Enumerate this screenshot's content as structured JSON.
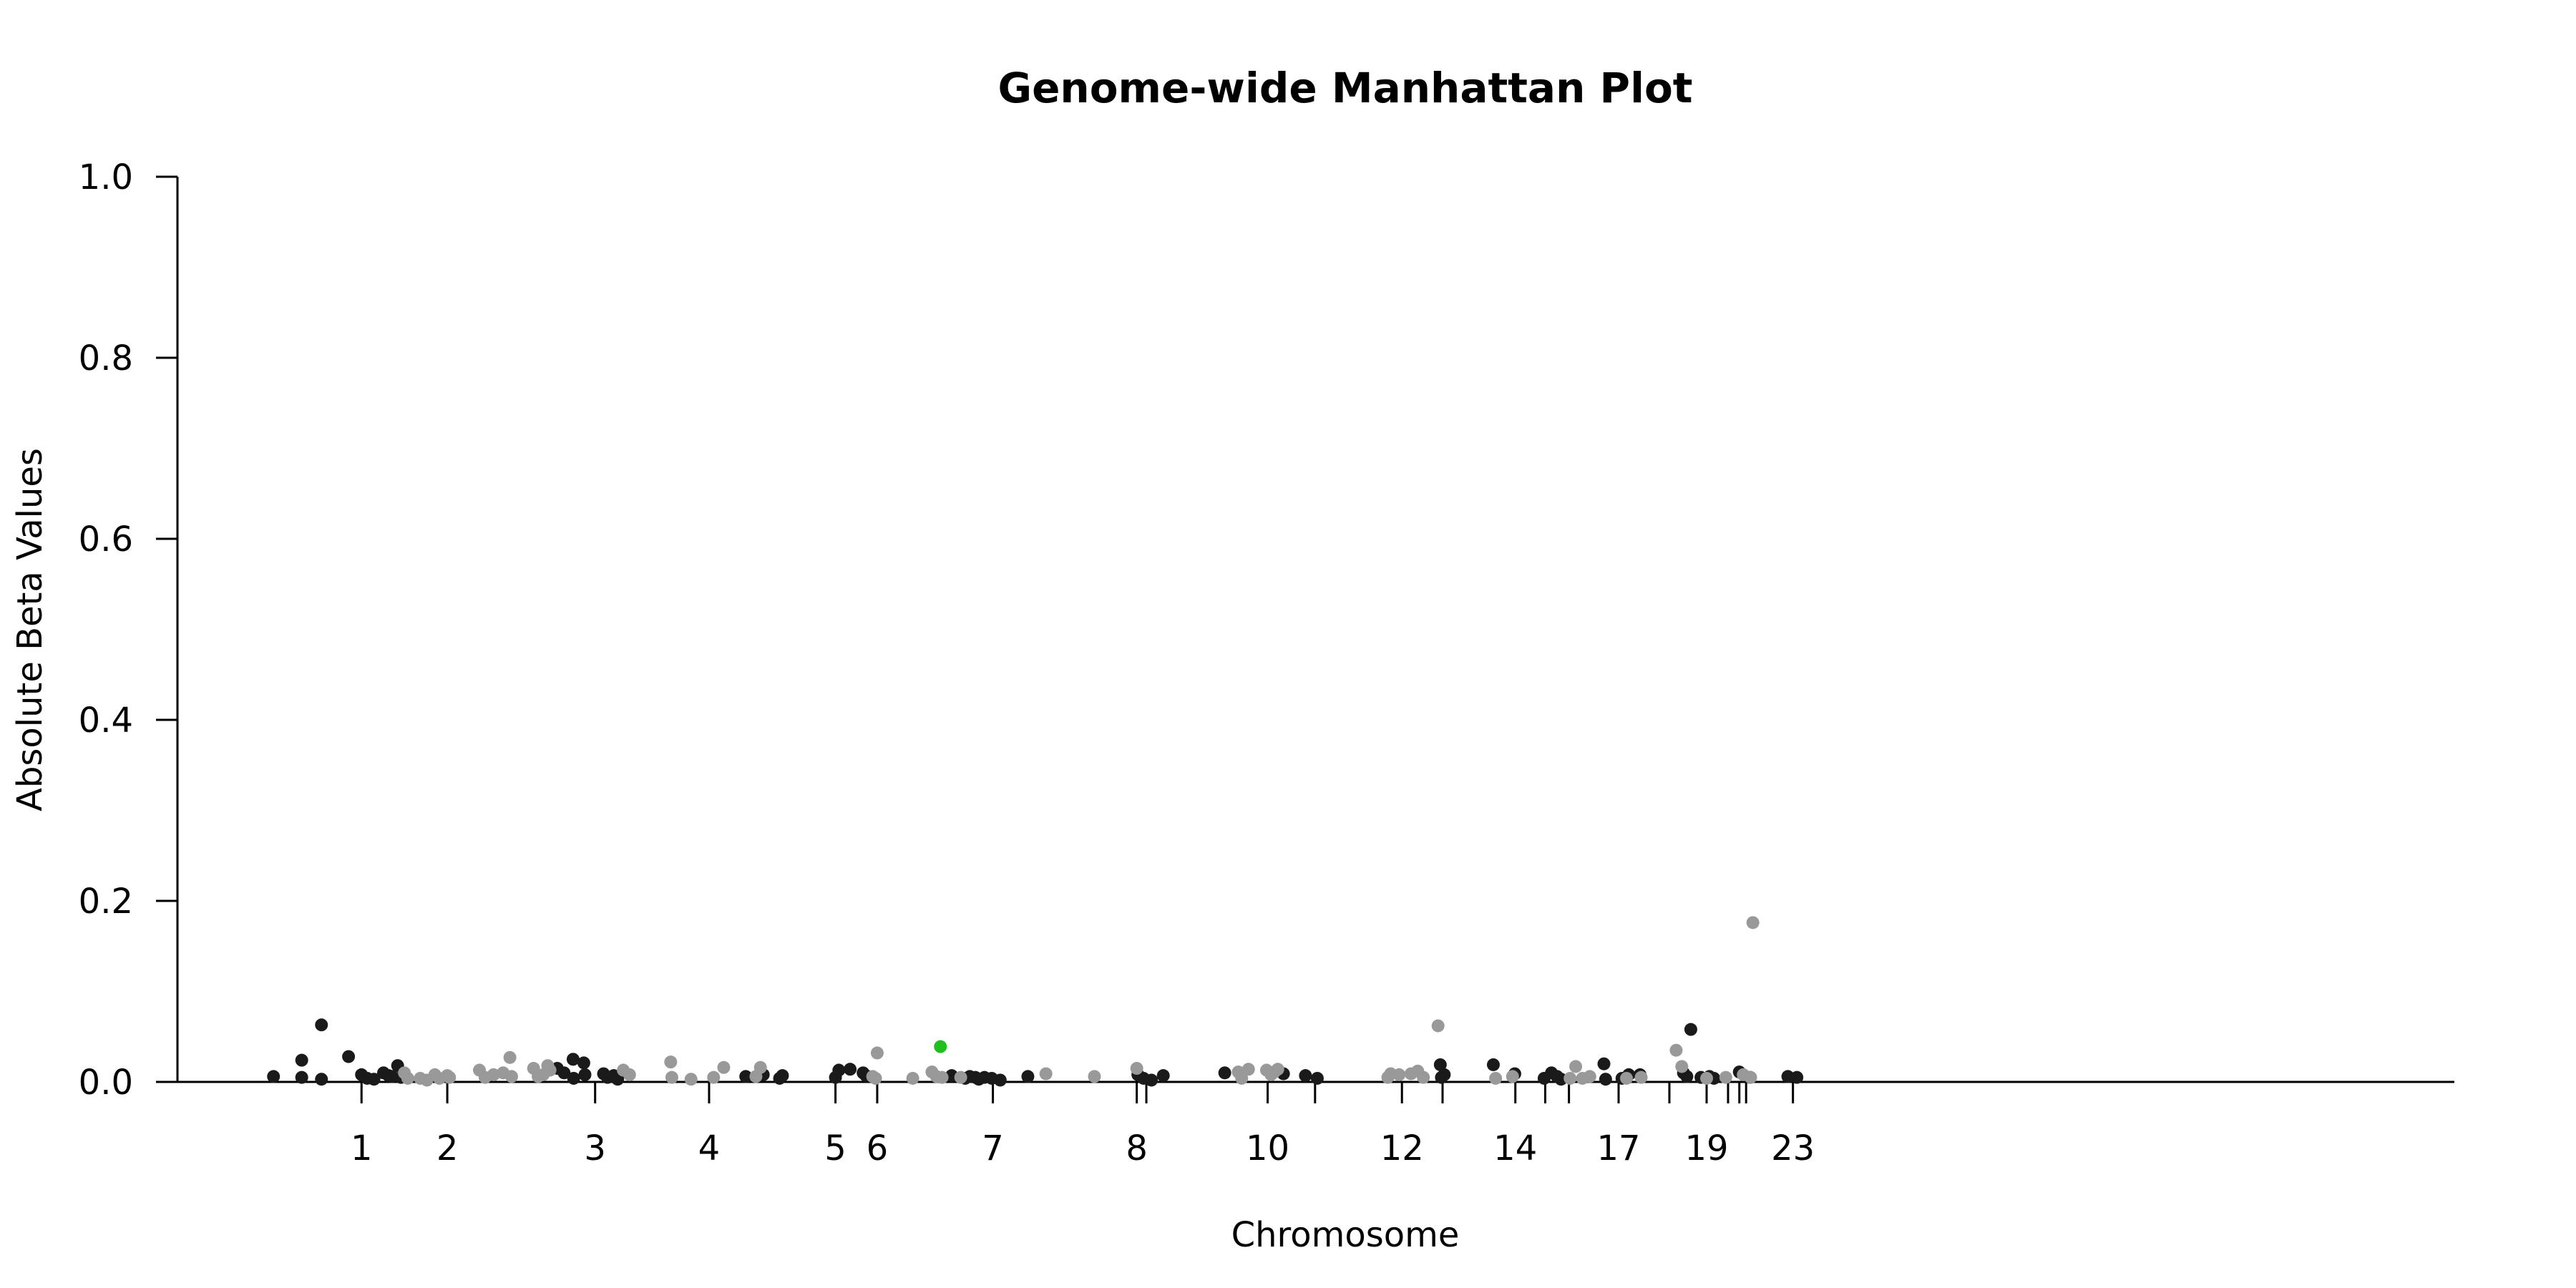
{
  "chart_data": {
    "type": "scatter",
    "title": "Genome-wide Manhattan Plot",
    "xlabel": "Chromosome",
    "ylabel": "Absolute Beta Values",
    "ylim": [
      0,
      1.0
    ],
    "xlim": [
      0,
      3070
    ],
    "y_ticks": [
      {
        "value": 0.0,
        "label": "0.0"
      },
      {
        "value": 0.2,
        "label": "0.2"
      },
      {
        "value": 0.4,
        "label": "0.4"
      },
      {
        "value": 0.6,
        "label": "0.6"
      },
      {
        "value": 0.8,
        "label": "0.8"
      },
      {
        "value": 1.0,
        "label": "1.0"
      }
    ],
    "x_ticks": [
      {
        "pos": 136,
        "label": "1"
      },
      {
        "pos": 288,
        "label": "2"
      },
      {
        "pos": 550,
        "label": "3"
      },
      {
        "pos": 752,
        "label": "4"
      },
      {
        "pos": 976,
        "label": "5"
      },
      {
        "pos": 1050,
        "label": "6"
      },
      {
        "pos": 1255,
        "label": "7"
      },
      {
        "pos": 1510,
        "label": "8"
      },
      {
        "pos": 1527,
        "label": ""
      },
      {
        "pos": 1742,
        "label": "10"
      },
      {
        "pos": 1826,
        "label": ""
      },
      {
        "pos": 1980,
        "label": "12"
      },
      {
        "pos": 2052,
        "label": ""
      },
      {
        "pos": 2181,
        "label": "14"
      },
      {
        "pos": 2234,
        "label": ""
      },
      {
        "pos": 2276,
        "label": ""
      },
      {
        "pos": 2364,
        "label": "17"
      },
      {
        "pos": 2454,
        "label": ""
      },
      {
        "pos": 2520,
        "label": "19"
      },
      {
        "pos": 2558,
        "label": ""
      },
      {
        "pos": 2578,
        "label": ""
      },
      {
        "pos": 2590,
        "label": ""
      },
      {
        "pos": 2673,
        "label": "23"
      }
    ],
    "grid": false,
    "legend": "none",
    "colors": {
      "dark": "#1a1a1a",
      "light": "#999999",
      "highlight": "#1fbf1f"
    },
    "series": [
      {
        "color": "dark",
        "points": [
          [
            -20,
            0.006
          ],
          [
            30,
            0.005
          ],
          [
            30,
            0.024
          ],
          [
            65,
            0.003
          ],
          [
            65,
            0.063
          ],
          [
            113,
            0.028
          ],
          [
            136,
            0.008
          ],
          [
            146,
            0.004
          ],
          [
            158,
            0.003
          ],
          [
            175,
            0.01
          ],
          [
            184,
            0.007
          ],
          [
            190,
            0.006
          ],
          [
            200,
            0.018
          ],
          [
            206,
            0.005
          ],
          [
            511,
            0.025
          ],
          [
            512,
            0.004
          ],
          [
            530,
            0.021
          ],
          [
            532,
            0.008
          ],
          [
            565,
            0.009
          ],
          [
            572,
            0.005
          ],
          [
            583,
            0.007
          ],
          [
            590,
            0.003
          ],
          [
            483,
            0.015
          ],
          [
            495,
            0.01
          ],
          [
            817,
            0.006
          ],
          [
            848,
            0.008
          ],
          [
            877,
            0.004
          ],
          [
            882,
            0.007
          ],
          [
            976,
            0.005
          ],
          [
            982,
            0.013
          ],
          [
            1002,
            0.014
          ],
          [
            1025,
            0.01
          ],
          [
            1030,
            0.007
          ],
          [
            1182,
            0.007
          ],
          [
            1206,
            0.004
          ],
          [
            1214,
            0.006
          ],
          [
            1224,
            0.005
          ],
          [
            1230,
            0.003
          ],
          [
            1240,
            0.005
          ],
          [
            1253,
            0.004
          ],
          [
            1268,
            0.002
          ],
          [
            1317,
            0.006
          ],
          [
            1512,
            0.008
          ],
          [
            1522,
            0.004
          ],
          [
            1536,
            0.002
          ],
          [
            1557,
            0.007
          ],
          [
            1666,
            0.01
          ],
          [
            1770,
            0.009
          ],
          [
            1809,
            0.007
          ],
          [
            1830,
            0.004
          ],
          [
            2048,
            0.019
          ],
          [
            2050,
            0.005
          ],
          [
            2055,
            0.008
          ],
          [
            2142,
            0.019
          ],
          [
            2180,
            0.009
          ],
          [
            2232,
            0.004
          ],
          [
            2245,
            0.01
          ],
          [
            2255,
            0.006
          ],
          [
            2262,
            0.003
          ],
          [
            2338,
            0.02
          ],
          [
            2341,
            0.003
          ],
          [
            2370,
            0.004
          ],
          [
            2382,
            0.008
          ],
          [
            2402,
            0.008
          ],
          [
            2479,
            0.01
          ],
          [
            2485,
            0.006
          ],
          [
            2492,
            0.058
          ],
          [
            2510,
            0.005
          ],
          [
            2525,
            0.006
          ],
          [
            2533,
            0.004
          ],
          [
            2578,
            0.011
          ],
          [
            2597,
            0.005
          ],
          [
            2664,
            0.006
          ],
          [
            2680,
            0.005
          ]
        ]
      },
      {
        "color": "light",
        "points": [
          [
            212,
            0.01
          ],
          [
            218,
            0.004
          ],
          [
            240,
            0.004
          ],
          [
            252,
            0.002
          ],
          [
            266,
            0.008
          ],
          [
            274,
            0.004
          ],
          [
            288,
            0.007
          ],
          [
            292,
            0.005
          ],
          [
            345,
            0.013
          ],
          [
            355,
            0.005
          ],
          [
            370,
            0.008
          ],
          [
            387,
            0.01
          ],
          [
            399,
            0.027
          ],
          [
            402,
            0.006
          ],
          [
            441,
            0.015
          ],
          [
            449,
            0.006
          ],
          [
            458,
            0.008
          ],
          [
            466,
            0.018
          ],
          [
            470,
            0.013
          ],
          [
            600,
            0.013
          ],
          [
            611,
            0.008
          ],
          [
            684,
            0.022
          ],
          [
            686,
            0.005
          ],
          [
            720,
            0.003
          ],
          [
            760,
            0.005
          ],
          [
            778,
            0.016
          ],
          [
            835,
            0.006
          ],
          [
            843,
            0.016
          ],
          [
            1050,
            0.032
          ],
          [
            1042,
            0.006
          ],
          [
            1047,
            0.004
          ],
          [
            1113,
            0.004
          ],
          [
            1147,
            0.011
          ],
          [
            1155,
            0.006
          ],
          [
            1165,
            0.005
          ],
          [
            1198,
            0.005
          ],
          [
            1349,
            0.009
          ],
          [
            1435,
            0.006
          ],
          [
            1510,
            0.015
          ],
          [
            1690,
            0.011
          ],
          [
            1696,
            0.004
          ],
          [
            1708,
            0.014
          ],
          [
            1740,
            0.013
          ],
          [
            1748,
            0.008
          ],
          [
            1754,
            0.011
          ],
          [
            1760,
            0.014
          ],
          [
            1955,
            0.005
          ],
          [
            1960,
            0.009
          ],
          [
            1975,
            0.008
          ],
          [
            1996,
            0.009
          ],
          [
            2008,
            0.012
          ],
          [
            2018,
            0.005
          ],
          [
            2044,
            0.062
          ],
          [
            2146,
            0.004
          ],
          [
            2176,
            0.006
          ],
          [
            2278,
            0.004
          ],
          [
            2288,
            0.017
          ],
          [
            2300,
            0.004
          ],
          [
            2313,
            0.006
          ],
          [
            2378,
            0.004
          ],
          [
            2404,
            0.005
          ],
          [
            2466,
            0.035
          ],
          [
            2476,
            0.017
          ],
          [
            2520,
            0.004
          ],
          [
            2554,
            0.005
          ],
          [
            2585,
            0.008
          ],
          [
            2602,
            0.176
          ],
          [
            2598,
            0.005
          ]
        ]
      },
      {
        "color": "highlight",
        "points": [
          [
            1162,
            0.039
          ]
        ]
      }
    ]
  }
}
